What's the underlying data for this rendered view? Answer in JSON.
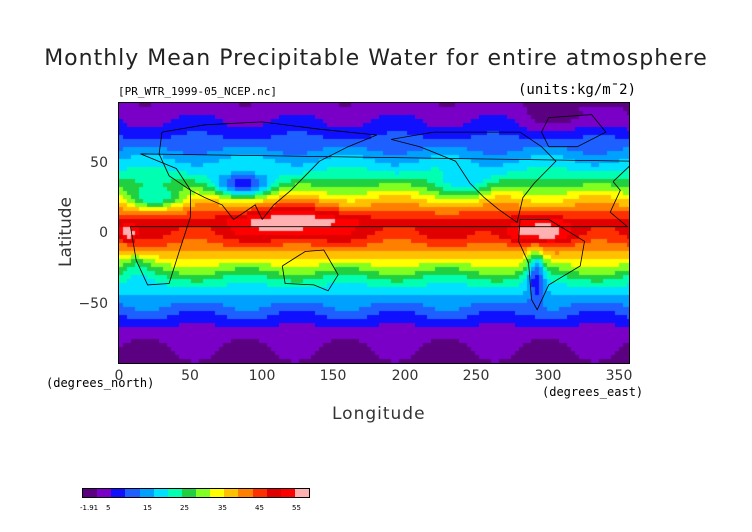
{
  "title": "Monthly Mean Precipitable Water for entire atmosphere",
  "file_label": "[PR_WTR_1999-05_NCEP.nc]",
  "units_label": "(units:kg/m¯2)",
  "axes": {
    "x_label": "Longitude",
    "y_label": "Latitude",
    "x_unit": "(degrees_east)",
    "y_unit": "(degrees_north)",
    "x_ticks": [
      "0",
      "50",
      "100",
      "150",
      "200",
      "250",
      "300",
      "350"
    ],
    "y_ticks": [
      "50",
      "0",
      "−50"
    ]
  },
  "map": {
    "x_range": [
      0,
      357.5
    ],
    "y_range": [
      -90,
      90
    ],
    "zonal_profile": [
      {
        "lat": 90,
        "value": 2
      },
      {
        "lat": 80,
        "value": 5
      },
      {
        "lat": 70,
        "value": 8
      },
      {
        "lat": 60,
        "value": 12
      },
      {
        "lat": 50,
        "value": 17
      },
      {
        "lat": 40,
        "value": 22
      },
      {
        "lat": 30,
        "value": 30
      },
      {
        "lat": 20,
        "value": 38
      },
      {
        "lat": 10,
        "value": 46
      },
      {
        "lat": 0,
        "value": 44
      },
      {
        "lat": -10,
        "value": 38
      },
      {
        "lat": -20,
        "value": 30
      },
      {
        "lat": -30,
        "value": 22
      },
      {
        "lat": -40,
        "value": 16
      },
      {
        "lat": -50,
        "value": 11
      },
      {
        "lat": -60,
        "value": 6
      },
      {
        "lat": -70,
        "value": 3
      },
      {
        "lat": -80,
        "value": 1
      },
      {
        "lat": -90,
        "value": 0
      }
    ],
    "anomalies": [
      {
        "lon": 120,
        "lat": 10,
        "rx": 35,
        "ry": 12,
        "delta": 10
      },
      {
        "lon": 290,
        "lat": 2,
        "rx": 25,
        "ry": 8,
        "delta": 9
      },
      {
        "lon": 5,
        "lat": 2,
        "rx": 6,
        "ry": 5,
        "delta": 10
      },
      {
        "lon": 85,
        "lat": 35,
        "rx": 20,
        "ry": 8,
        "delta": -18
      },
      {
        "lon": 290,
        "lat": -25,
        "rx": 6,
        "ry": 18,
        "delta": -15
      },
      {
        "lon": 25,
        "lat": 25,
        "rx": 20,
        "ry": 8,
        "delta": -12
      },
      {
        "lon": 240,
        "lat": 35,
        "rx": 18,
        "ry": 10,
        "delta": -8
      },
      {
        "lon": 320,
        "lat": 80,
        "rx": 40,
        "ry": 8,
        "delta": -4
      },
      {
        "lon": 10,
        "lat": -20,
        "rx": 12,
        "ry": 10,
        "delta": -6
      }
    ]
  },
  "colorbar": {
    "tick_labels": [
      "-1.91",
      "5",
      "15",
      "25",
      "35",
      "45",
      "55"
    ],
    "colors": [
      "#5a0080",
      "#7a00c8",
      "#1010ff",
      "#1e60ff",
      "#00a0ff",
      "#00e0ff",
      "#00ffb0",
      "#20d040",
      "#80ff20",
      "#ffff00",
      "#ffc000",
      "#ff8000",
      "#ff3000",
      "#e00000",
      "#ff0000",
      "#ffb0b0"
    ]
  }
}
